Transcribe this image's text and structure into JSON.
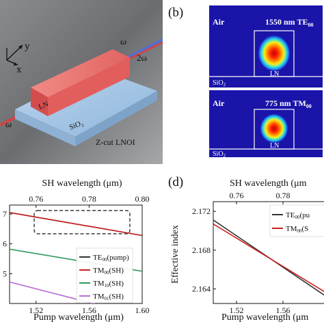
{
  "panel_a": {
    "axes": {
      "y": "y",
      "x": "x"
    },
    "labels": {
      "omega_out": "ω",
      "two_omega": "2ω",
      "omega_in": "ω",
      "ln": "LN",
      "sio2": "SiO₂",
      "caption": "Z-cut LNOI"
    },
    "colors": {
      "background": "#6f7072",
      "slab": "#a9c9e6",
      "ridge": "#e96d6d",
      "beam_red": "#e23b3b",
      "beam_blue": "#4f6fd8"
    }
  },
  "panel_b": {
    "label": "(b)",
    "modes": [
      {
        "air": "Air",
        "title_main": "1550 nm TE",
        "title_sub": "00",
        "ln": "LN",
        "sio2": "SiO",
        "sio2_sub": "2"
      },
      {
        "air": "Air",
        "title_main": "775 nm TM",
        "title_sub": "00",
        "ln": "LN",
        "sio2": "SiO",
        "sio2_sub": "2"
      }
    ],
    "colors": {
      "field_bg": "#1a14a8",
      "hot": "#d10f0f"
    }
  },
  "panel_c": {
    "top_axis_label": "SH wavelength (μm)",
    "top_ticks": [
      "0.76",
      "0.78",
      "0.80"
    ],
    "bottom_axis_label": "Pump wavelength (μm)",
    "bottom_ticks": [
      "1.52",
      "1.56",
      "1.60"
    ],
    "y_ticks": [
      "7",
      "6",
      "5"
    ],
    "legend": [
      {
        "name": "TE",
        "sub": "00",
        "suffix": "(pump)",
        "color": "#333333"
      },
      {
        "name": "TM",
        "sub": "00",
        "suffix": "(SH)",
        "color": "#c8201f"
      },
      {
        "name": "TM",
        "sub": "10",
        "suffix": "(SH)",
        "color": "#2e9a5a"
      },
      {
        "name": "TM",
        "sub": "01",
        "suffix": "(SH)",
        "color": "#b96bd6"
      }
    ]
  },
  "panel_d": {
    "label": "(d)",
    "top_axis_label": "SH wavelength (μm",
    "top_ticks": [
      "0.76",
      "0.78"
    ],
    "bottom_axis_label": "Pump wavelength (μm",
    "bottom_ticks": [
      "1.52",
      "1.56"
    ],
    "y_axis_label": "Effective index",
    "y_ticks": [
      "2.172",
      "2.168",
      "2.164"
    ],
    "legend": [
      {
        "name": "TE",
        "sub": "00",
        "suffix": "(pu",
        "color": "#333333"
      },
      {
        "name": "TM",
        "sub": "00",
        "suffix": "(S",
        "color": "#c8201f"
      }
    ]
  },
  "chart_data": [
    {
      "type": "line",
      "panel": "c",
      "xlabel": "Pump wavelength (μm)",
      "x2label": "SH wavelength (μm)",
      "xlim": [
        1.5,
        1.6
      ],
      "ylim": [
        4.0,
        7.3
      ],
      "series": [
        {
          "name": "TE00(pump)",
          "x": [
            1.5,
            1.6
          ],
          "y": [
            7.05,
            6.28
          ]
        },
        {
          "name": "TM00(SH)",
          "x": [
            1.5,
            1.6
          ],
          "y": [
            7.05,
            6.28
          ]
        },
        {
          "name": "TM10(SH)",
          "x": [
            1.5,
            1.6
          ],
          "y": [
            5.82,
            5.08
          ]
        },
        {
          "name": "TM01(SH)",
          "x": [
            1.5,
            1.57
          ],
          "y": [
            4.72,
            3.92
          ]
        }
      ]
    },
    {
      "type": "line",
      "panel": "d",
      "ylabel": "Effective index",
      "xlabel": "Pump wavelength (μm)",
      "x2label": "SH wavelength (μm)",
      "xlim": [
        1.5,
        1.6
      ],
      "ylim": [
        2.1625,
        2.173
      ],
      "series": [
        {
          "name": "TE00(pump)",
          "x": [
            1.5,
            1.6
          ],
          "y": [
            2.1711,
            2.163
          ]
        },
        {
          "name": "TM00(SH)",
          "x": [
            1.5,
            1.6
          ],
          "y": [
            2.1707,
            2.1634
          ]
        }
      ]
    }
  ]
}
